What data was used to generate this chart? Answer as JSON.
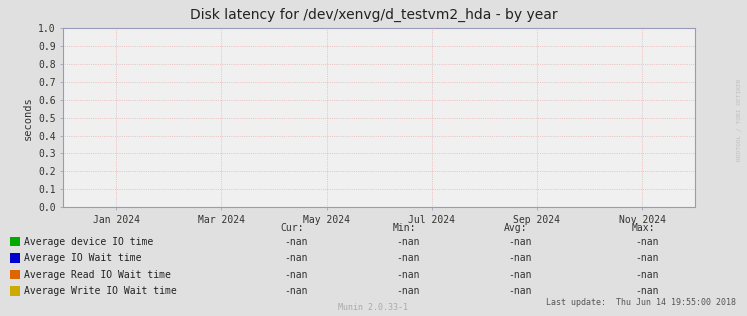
{
  "title": "Disk latency for /dev/xenvg/d_testvm2_hda - by year",
  "ylabel": "seconds",
  "ylim": [
    0.0,
    1.0
  ],
  "yticks": [
    0.0,
    0.1,
    0.2,
    0.3,
    0.4,
    0.5,
    0.6,
    0.7,
    0.8,
    0.9,
    1.0
  ],
  "xtick_labels": [
    "Jan 2024",
    "Mar 2024",
    "May 2024",
    "Jul 2024",
    "Sep 2024",
    "Nov 2024"
  ],
  "xtick_positions": [
    0.0833,
    0.25,
    0.4167,
    0.5833,
    0.75,
    0.9167
  ],
  "vgrid_positions": [
    0.0833,
    0.25,
    0.4167,
    0.5833,
    0.75,
    0.9167
  ],
  "bg_color": "#e0e0e0",
  "plot_bg_color": "#f0f0f0",
  "grid_color_h": "#e8a0a0",
  "grid_color_v": "#e8a0a0",
  "axis_color": "#9999bb",
  "legend_entries": [
    {
      "label": "Average device IO time",
      "color": "#00aa00"
    },
    {
      "label": "Average IO Wait time",
      "color": "#0000cc"
    },
    {
      "label": "Average Read IO Wait time",
      "color": "#dd6600"
    },
    {
      "label": "Average Write IO Wait time",
      "color": "#ccaa00"
    }
  ],
  "stats_headers": [
    "Cur:",
    "Min:",
    "Avg:",
    "Max:"
  ],
  "stats_values": [
    "-nan",
    "-nan",
    "-nan",
    "-nan"
  ],
  "footer_center": "Munin 2.0.33-1",
  "footer_right": "Last update:  Thu Jun 14 19:55:00 2018",
  "watermark": "RRDTOOL / TOBI OETIKER",
  "title_fontsize": 10,
  "tick_fontsize": 7,
  "ylabel_fontsize": 7.5,
  "legend_fontsize": 7,
  "stats_fontsize": 7,
  "footer_fontsize": 6
}
